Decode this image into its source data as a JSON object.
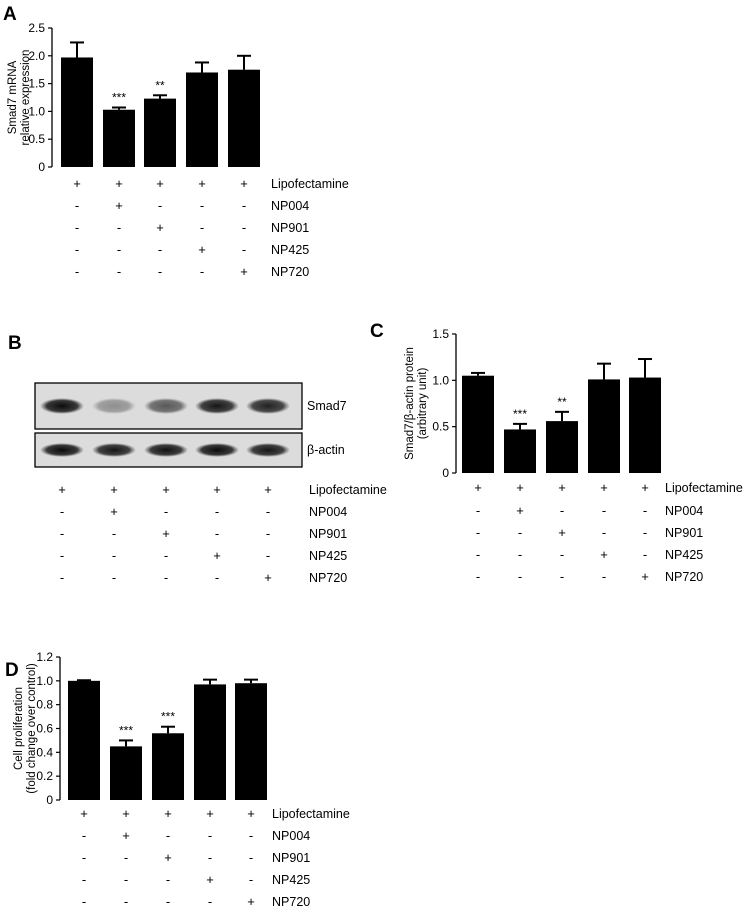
{
  "panels": {
    "A": {
      "letter": "A"
    },
    "B": {
      "letter": "B"
    },
    "C": {
      "letter": "C"
    },
    "D": {
      "letter": "D"
    }
  },
  "treatment_rows": [
    {
      "name": "Lipofectamine",
      "signs": [
        "+",
        "+",
        "+",
        "+",
        "+"
      ]
    },
    {
      "name": "NP004",
      "signs": [
        "-",
        "+",
        "-",
        "-",
        "-"
      ]
    },
    {
      "name": "NP901",
      "signs": [
        "-",
        "-",
        "+",
        "-",
        "-"
      ]
    },
    {
      "name": "NP425",
      "signs": [
        "-",
        "-",
        "-",
        "+",
        "-"
      ]
    },
    {
      "name": "NP720",
      "signs": [
        "-",
        "-",
        "-",
        "-",
        "+"
      ]
    }
  ],
  "blot": {
    "bands": [
      {
        "label": "Smad7",
        "intensity": [
          0.95,
          0.35,
          0.6,
          0.9,
          0.85
        ]
      },
      {
        "label": "β-actin",
        "intensity": [
          0.95,
          0.9,
          0.92,
          0.95,
          0.9
        ]
      }
    ]
  },
  "chart_data": [
    {
      "id": "A",
      "type": "bar",
      "ylabel_lines": [
        "Smad7 mRNA",
        "relative expression"
      ],
      "ylim": [
        0,
        2.5
      ],
      "yticks": [
        "0",
        "0.5",
        "1.0",
        "1.5",
        "2.0",
        "2.5"
      ],
      "values": [
        1.97,
        1.03,
        1.23,
        1.7,
        1.75
      ],
      "errors": [
        0.27,
        0.04,
        0.06,
        0.18,
        0.25
      ],
      "significance": [
        "",
        "***",
        "**",
        "",
        ""
      ]
    },
    {
      "id": "C",
      "type": "bar",
      "ylabel_lines": [
        "Smad7/β-actin protein",
        "(arbitrary unit)"
      ],
      "ylim": [
        0,
        1.5
      ],
      "yticks": [
        "0",
        "0.5",
        "1.0",
        "1.5"
      ],
      "values": [
        1.05,
        0.47,
        0.56,
        1.01,
        1.03
      ],
      "errors": [
        0.03,
        0.06,
        0.1,
        0.17,
        0.2
      ],
      "significance": [
        "",
        "***",
        "**",
        "",
        ""
      ]
    },
    {
      "id": "D",
      "type": "bar",
      "ylabel_lines": [
        "Cell proliferation",
        "(fold change over control)"
      ],
      "ylim": [
        0,
        1.2
      ],
      "yticks": [
        "0",
        "0.2",
        "0.4",
        "0.6",
        "0.8",
        "1.0",
        "1.2"
      ],
      "values": [
        1.0,
        0.45,
        0.56,
        0.97,
        0.98
      ],
      "errors": [
        0.005,
        0.05,
        0.055,
        0.04,
        0.03
      ],
      "significance": [
        "",
        "***",
        "***",
        "",
        ""
      ]
    }
  ]
}
